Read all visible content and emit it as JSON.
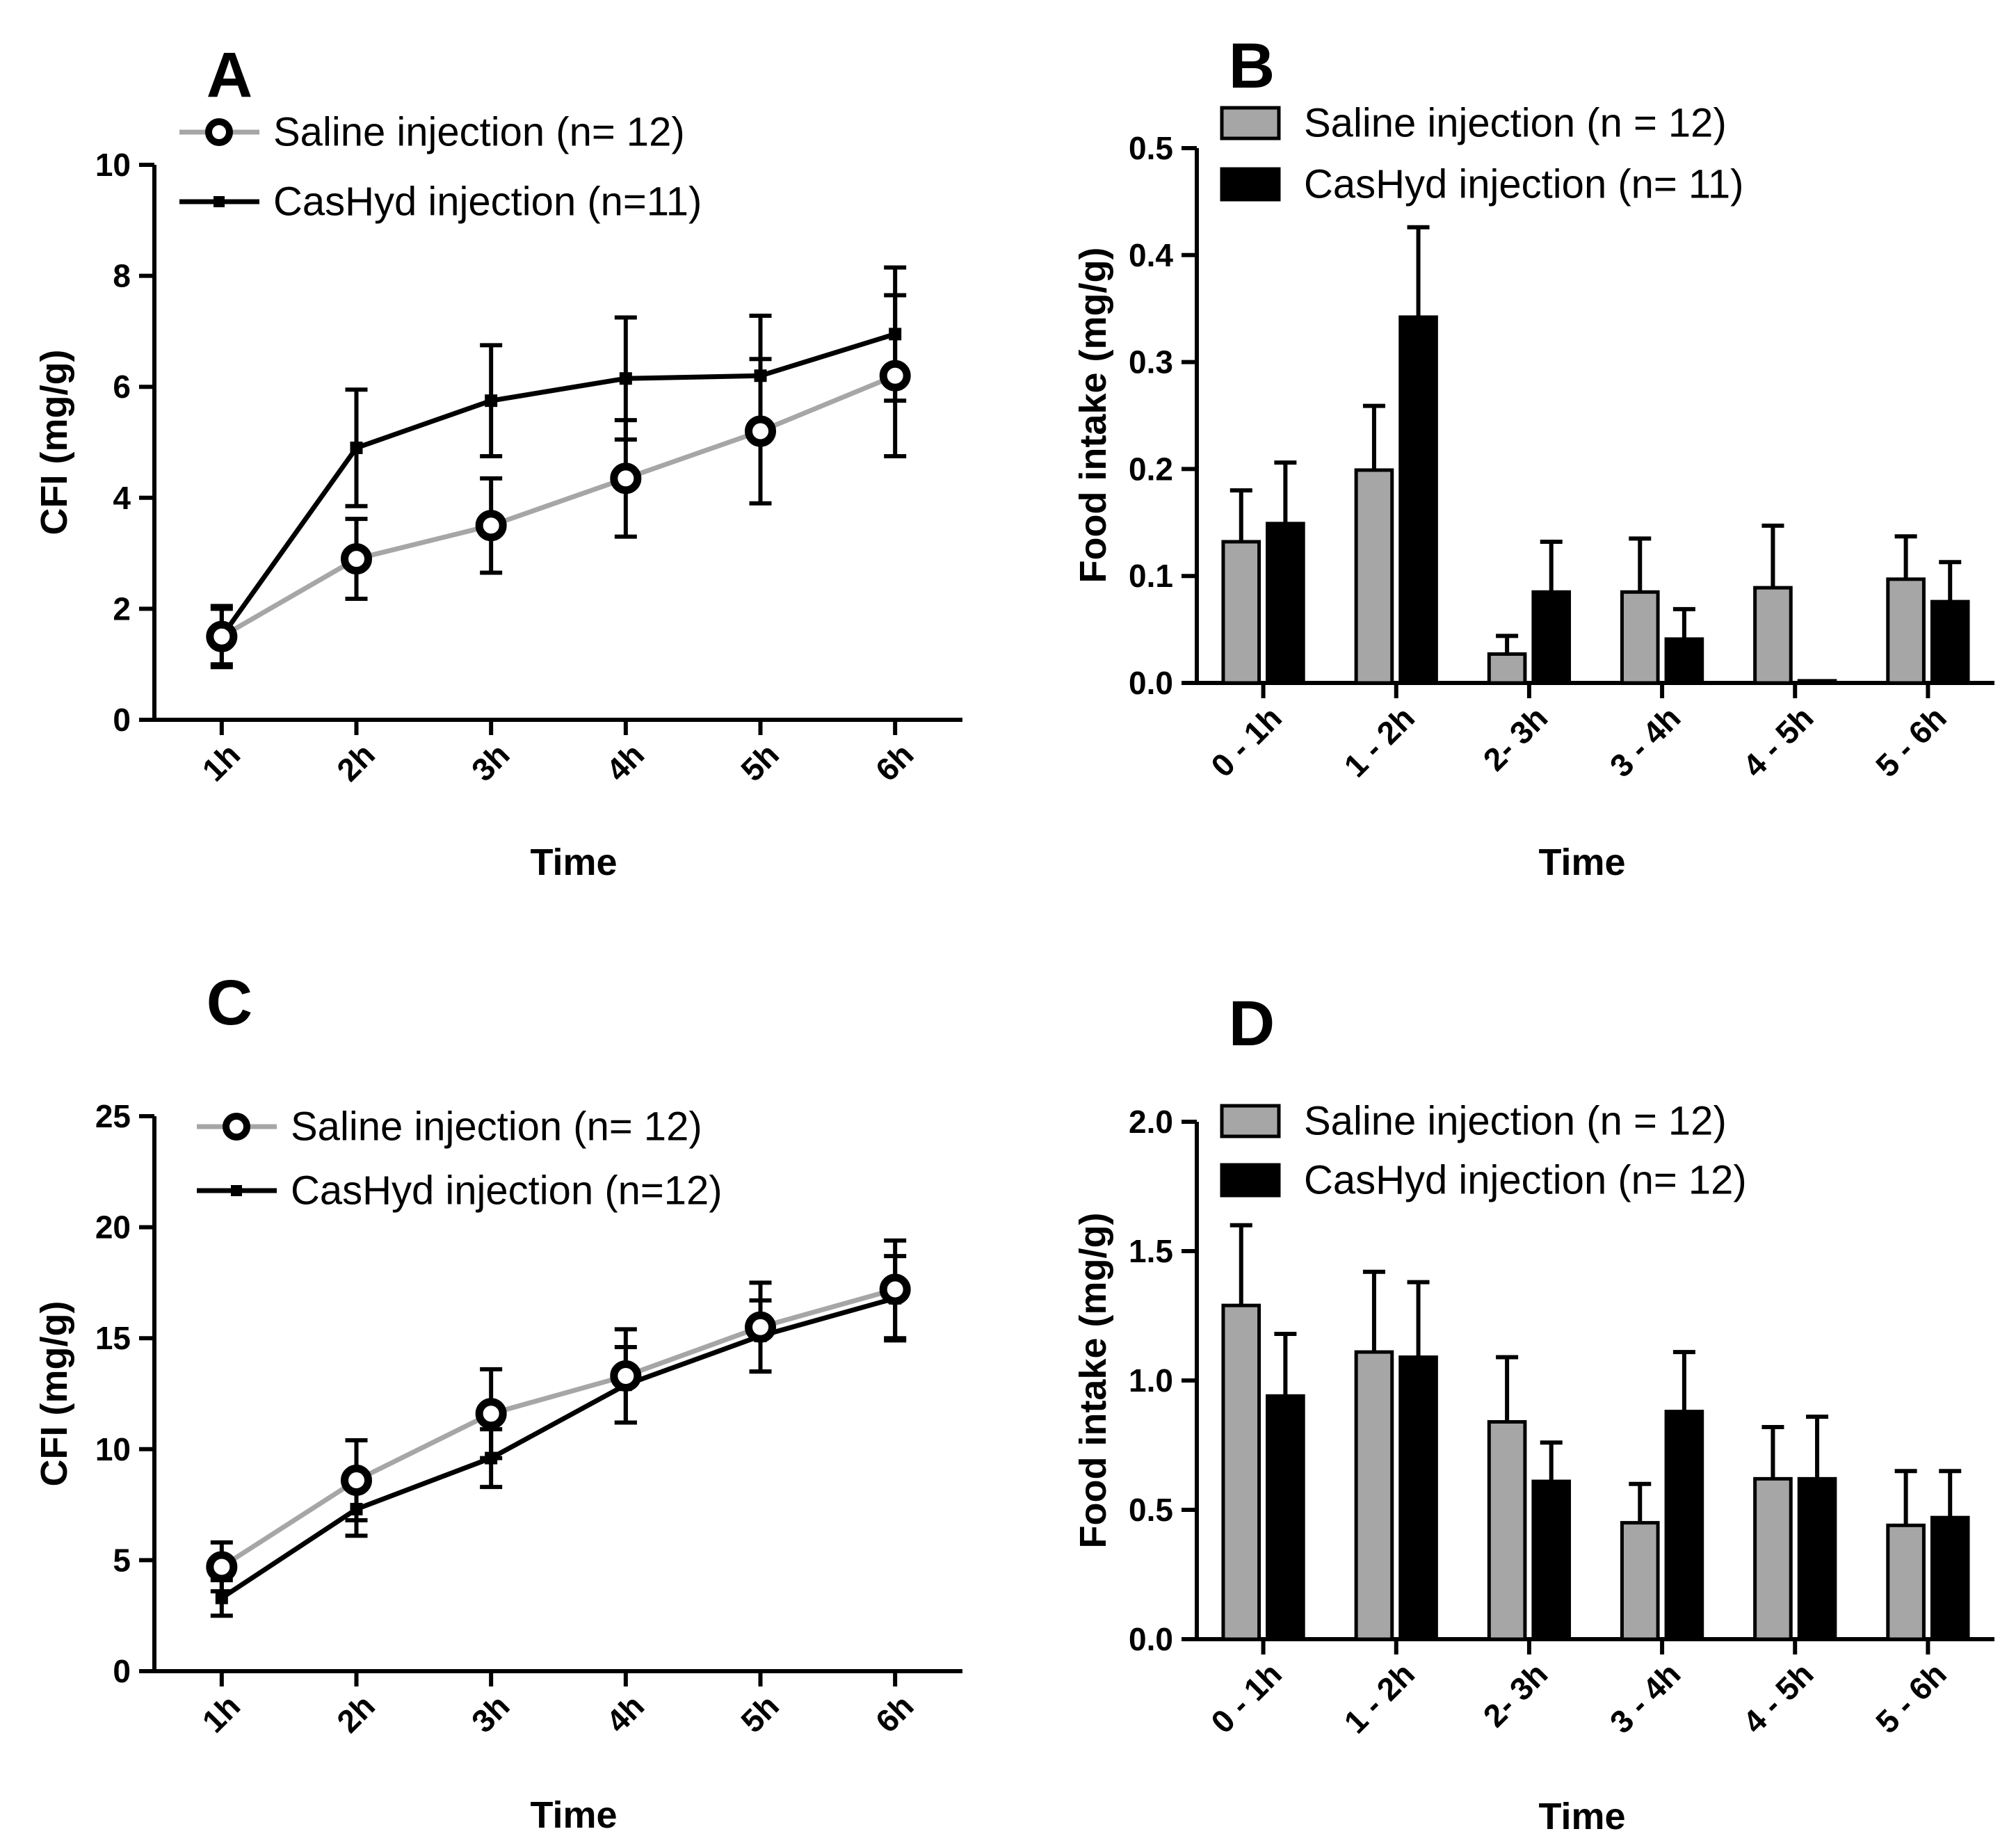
{
  "colors": {
    "saline": "#a6a6a6",
    "cashyd": "#000000",
    "axis": "#000000"
  },
  "chart_data": [
    {
      "panel": "A",
      "type": "line",
      "xlabel": "Time",
      "ylabel": "CFI (mg/g)",
      "categories": [
        "1h",
        "2h",
        "3h",
        "4h",
        "5h",
        "6h"
      ],
      "ylim": [
        0,
        10
      ],
      "yticks": [
        0,
        2,
        4,
        6,
        8,
        10
      ],
      "legend_position": "top-left",
      "series": [
        {
          "name": "Saline injection (n= 12)",
          "marker": "circle",
          "values": [
            1.5,
            2.9,
            3.5,
            4.35,
            5.2,
            6.2
          ],
          "errors": [
            0.5,
            0.72,
            0.85,
            1.05,
            1.3,
            1.45
          ]
        },
        {
          "name": "CasHyd injection (n=11)",
          "marker": "square",
          "values": [
            1.5,
            4.9,
            5.75,
            6.15,
            6.2,
            6.95
          ],
          "errors": [
            0.55,
            1.05,
            1.0,
            1.1,
            1.08,
            1.2
          ]
        }
      ]
    },
    {
      "panel": "B",
      "type": "bar",
      "xlabel": "Time",
      "ylabel": "Food intake (mg/g)",
      "categories": [
        "0 - 1h",
        "1 - 2h",
        "2- 3h",
        "3 - 4h",
        "4 - 5h",
        "5 - 6h"
      ],
      "ylim": [
        0,
        0.5
      ],
      "yticks": [
        "0.0",
        "0.1",
        "0.2",
        "0.3",
        "0.4",
        "0.5"
      ],
      "legend_position": "top-left",
      "series": [
        {
          "name": "Saline injection (n = 12)",
          "values": [
            0.132,
            0.199,
            0.027,
            0.085,
            0.089,
            0.097
          ],
          "errors": [
            0.048,
            0.06,
            0.017,
            0.05,
            0.058,
            0.04
          ]
        },
        {
          "name": "CasHyd injection (n= 11)",
          "values": [
            0.149,
            0.342,
            0.085,
            0.041,
            0.002,
            0.076
          ],
          "errors": [
            0.057,
            0.084,
            0.047,
            0.028,
            0.0,
            0.037
          ]
        }
      ]
    },
    {
      "panel": "C",
      "type": "line",
      "xlabel": "Time",
      "ylabel": "CFI (mg/g)",
      "categories": [
        "1h",
        "2h",
        "3h",
        "4h",
        "5h",
        "6h"
      ],
      "ylim": [
        0,
        25
      ],
      "yticks": [
        0,
        5,
        10,
        15,
        20,
        25
      ],
      "legend_position": "top-left",
      "series": [
        {
          "name": "Saline injection (n= 12)",
          "marker": "circle",
          "values": [
            4.7,
            8.6,
            11.6,
            13.3,
            15.5,
            17.2
          ],
          "errors": [
            1.1,
            1.8,
            2.0,
            2.1,
            2.0,
            2.2
          ]
        },
        {
          "name": "CasHyd injection (n=12)",
          "marker": "square",
          "values": [
            3.3,
            7.3,
            9.6,
            12.9,
            15.1,
            16.8
          ],
          "errors": [
            0.8,
            1.2,
            1.3,
            1.7,
            1.6,
            1.9
          ]
        }
      ]
    },
    {
      "panel": "D",
      "type": "bar",
      "xlabel": "Time",
      "ylabel": "Food intake (mg/g)",
      "categories": [
        "0 - 1h",
        "1 - 2h",
        "2- 3h",
        "3 - 4h",
        "4 - 5h",
        "5 - 6h"
      ],
      "ylim": [
        0,
        2.0
      ],
      "yticks": [
        "0.0",
        "0.5",
        "1.0",
        "1.5",
        "2.0"
      ],
      "legend_position": "top-left",
      "series": [
        {
          "name": "Saline injection (n = 12)",
          "values": [
            1.29,
            1.11,
            0.84,
            0.45,
            0.62,
            0.44
          ],
          "errors": [
            0.31,
            0.31,
            0.25,
            0.15,
            0.2,
            0.21
          ]
        },
        {
          "name": "CasHyd injection (n= 12)",
          "values": [
            0.94,
            1.09,
            0.61,
            0.88,
            0.62,
            0.47
          ],
          "errors": [
            0.24,
            0.29,
            0.15,
            0.23,
            0.24,
            0.18
          ]
        }
      ]
    }
  ]
}
